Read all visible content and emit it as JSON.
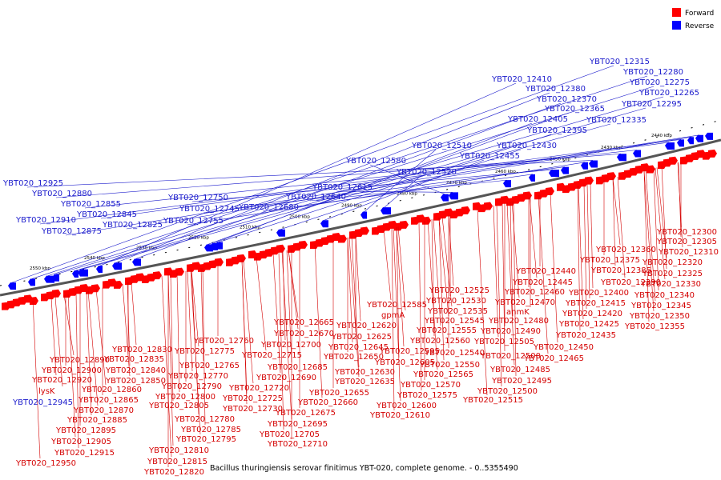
{
  "caption": "Bacillus thuringiensis serovar finitimus YBT-020, complete genome. - 0..5355490",
  "legend": [
    {
      "label": "Forward",
      "color": "#ff0000"
    },
    {
      "label": "Reverse",
      "color": "#0000ff"
    }
  ],
  "ticks": [
    "2430 kbp",
    "2440 kbp",
    "2450 kbp",
    "2460 kbp",
    "2470 kbp",
    "2480 kbp",
    "2490 kbp",
    "2500 kbp",
    "2510 kbp",
    "2520 kbp",
    "2530 kbp",
    "2540 kbp",
    "2550 kbp"
  ],
  "reverse_labels": [
    "YBT020_12315",
    "YBT020_12280",
    "YBT020_12275",
    "YBT020_12265",
    "YBT020_12295",
    "YBT020_12335",
    "YBT020_12410",
    "YBT020_12380",
    "YBT020_12370",
    "YBT020_12365",
    "YBT020_12405",
    "YBT020_12395",
    "YBT020_12430",
    "YBT020_12455",
    "YBT020_12510",
    "YBT020_12520",
    "YBT020_12580",
    "YBT020_12615",
    "YBT020_12640",
    "YBT020_12680",
    "YBT020_12750",
    "YBT020_12745",
    "YBT020_12755",
    "YBT020_12925",
    "YBT020_12880",
    "YBT020_12855",
    "YBT020_12845",
    "YBT020_12910",
    "YBT020_12825",
    "YBT020_12875",
    "YBT020_12945"
  ],
  "forward_labels": [
    "YBT020_12300",
    "YBT020_12305",
    "YBT020_12310",
    "YBT020_12360",
    "YBT020_12320",
    "YBT020_12375",
    "YBT020_12385",
    "YBT020_12325",
    "YBT020_12390",
    "YBT020_12330",
    "YBT020_12440",
    "YBT020_12400",
    "YBT020_12340",
    "YBT020_12445",
    "YBT020_12345",
    "YBT020_12460",
    "YBT020_12415",
    "YBT020_12525",
    "YBT020_12470",
    "YBT020_12350",
    "YBT020_12530",
    "YBT020_12420",
    "YBT020_12355",
    "YBT020_12585",
    "YBT020_12535",
    "anmK",
    "YBT020_12480",
    "YBT020_12425",
    "gpmA",
    "YBT020_12545",
    "YBT020_12490",
    "YBT020_12435",
    "YBT020_12620",
    "YBT020_12555",
    "YBT020_12665",
    "YBT020_12625",
    "YBT020_12560",
    "YBT020_12505",
    "YBT020_12450",
    "YBT020_12670",
    "YBT020_12540",
    "YBT020_12500",
    "YBT020_12645",
    "YBT020_12595",
    "YBT020_12465",
    "YBT020_12760",
    "YBT020_12700",
    "YBT020_12830",
    "YBT020_12775",
    "YBT020_12715",
    "YBT020_12650",
    "YBT020_12605",
    "YBT020_12550",
    "YBT020_12485",
    "YBT020_12890",
    "YBT020_12835",
    "YBT020_12765",
    "YBT020_12685",
    "YBT020_12630",
    "YBT020_12565",
    "YBT020_12900",
    "YBT020_12840",
    "YBT020_12770",
    "YBT020_12690",
    "YBT020_12635",
    "YBT020_12570",
    "YBT020_12495",
    "YBT020_12920",
    "YBT020_12850",
    "YBT020_12720",
    "YBT020_12655",
    "YBT020_12575",
    "YBT020_12500",
    "lysK",
    "YBT020_12860",
    "YBT020_12790",
    "YBT020_12800",
    "YBT020_12725",
    "YBT020_12660",
    "YBT020_12515",
    "YBT020_12865",
    "YBT020_12805",
    "YBT020_12730",
    "YBT020_12600",
    "YBT020_12870",
    "YBT020_12675",
    "YBT020_12610",
    "YBT020_12885",
    "YBT020_12780",
    "YBT020_12695",
    "YBT020_12895",
    "YBT020_12785",
    "YBT020_12705",
    "YBT020_12905",
    "YBT020_12795",
    "YBT020_12710",
    "YBT020_12915",
    "YBT020_12810",
    "YBT020_12950",
    "YBT020_12815",
    "YBT020_12820"
  ]
}
